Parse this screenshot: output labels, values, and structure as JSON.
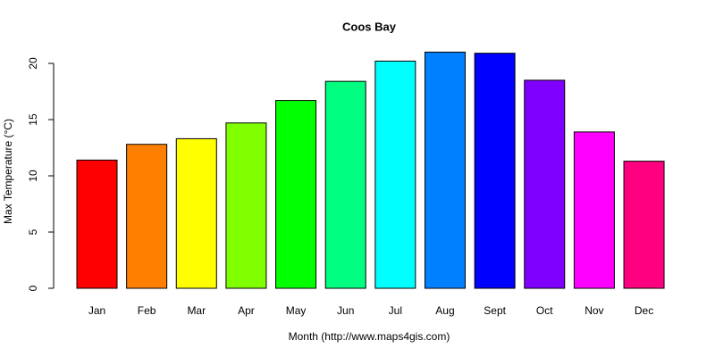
{
  "chart_data": {
    "type": "bar",
    "title": "Coos Bay",
    "x_label": "Month (http://www.maps4gis.com)",
    "y_label": "Max Temperature (°C)",
    "categories": [
      "Jan",
      "Feb",
      "Mar",
      "Apr",
      "May",
      "Jun",
      "Jul",
      "Aug",
      "Sept",
      "Oct",
      "Nov",
      "Dec"
    ],
    "values": [
      11.4,
      12.8,
      13.3,
      14.7,
      16.7,
      18.4,
      20.2,
      21.0,
      20.9,
      18.5,
      13.9,
      11.3
    ],
    "colors": [
      "#FF0000",
      "#FF8000",
      "#FFFF00",
      "#80FF00",
      "#00FF00",
      "#00FF80",
      "#00FFFF",
      "#0080FF",
      "#0000FF",
      "#8000FF",
      "#FF00FF",
      "#FF0080"
    ],
    "ylim": [
      0,
      20
    ],
    "yticks": [
      0,
      5,
      10,
      15,
      20
    ]
  }
}
